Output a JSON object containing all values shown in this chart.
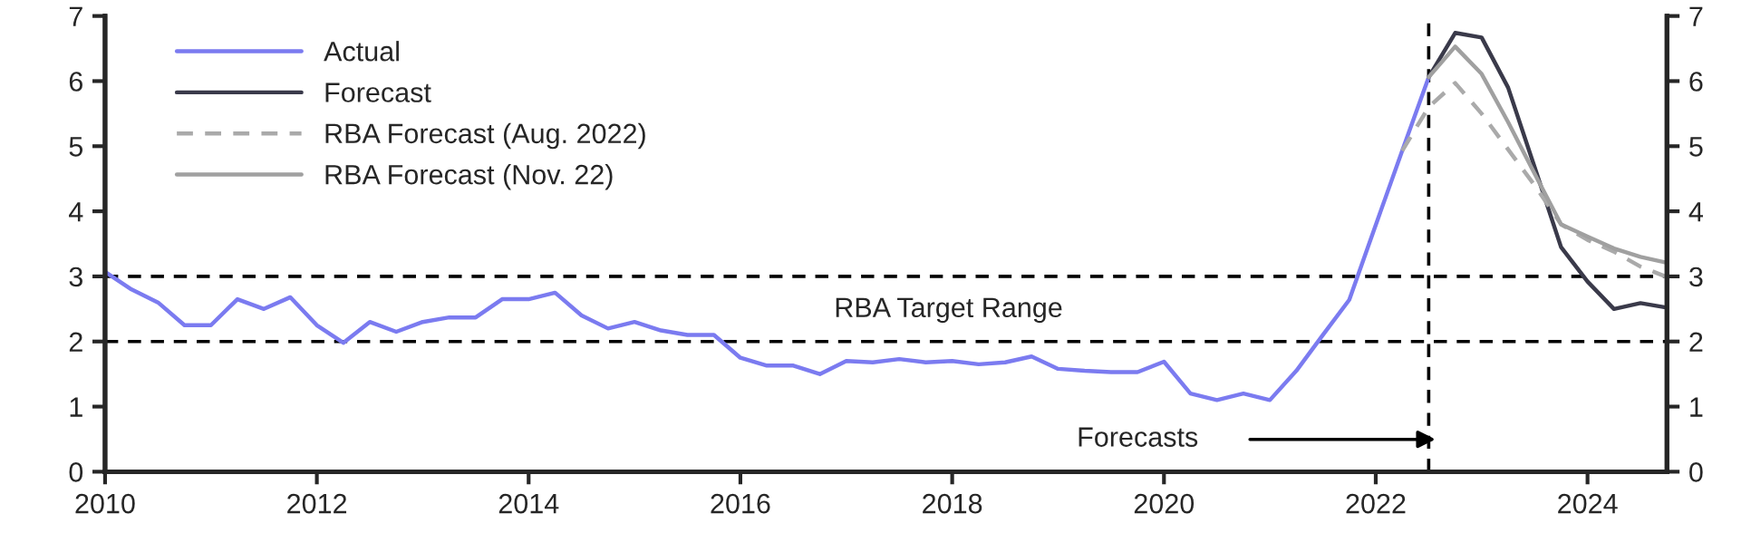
{
  "chart_data": {
    "type": "line",
    "xlim": [
      2010,
      2024.75
    ],
    "xticks": [
      2010,
      2012,
      2014,
      2016,
      2018,
      2020,
      2022,
      2024
    ],
    "ylim": [
      0,
      7
    ],
    "yticks": [
      0,
      1,
      2,
      3,
      4,
      5,
      6,
      7
    ],
    "y2lim": [
      0,
      7
    ],
    "y2ticks": [
      0,
      1,
      2,
      3,
      4,
      5,
      6,
      7
    ],
    "grid": false,
    "legend": "top left",
    "line_style": "solid",
    "marker": "none",
    "series": [
      {
        "name": "Actual",
        "color": "#7b7bf0",
        "x": [
          2010,
          2010.25,
          2010.5,
          2010.75,
          2011,
          2011.25,
          2011.5,
          2011.75,
          2012,
          2012.25,
          2012.5,
          2012.75,
          2013,
          2013.25,
          2013.5,
          2013.75,
          2014,
          2014.25,
          2014.5,
          2014.75,
          2015,
          2015.25,
          2015.5,
          2015.75,
          2016,
          2016.25,
          2016.5,
          2016.75,
          2017,
          2017.25,
          2017.5,
          2017.75,
          2018,
          2018.25,
          2018.5,
          2018.75,
          2019,
          2019.25,
          2019.5,
          2019.75,
          2020,
          2020.25,
          2020.5,
          2020.75,
          2021,
          2021.25,
          2021.5,
          2021.75,
          2022,
          2022.25,
          2022.5
        ],
        "values": [
          3.07,
          2.8,
          2.6,
          2.25,
          2.25,
          2.65,
          2.5,
          2.68,
          2.25,
          1.98,
          2.3,
          2.15,
          2.3,
          2.37,
          2.37,
          2.65,
          2.65,
          2.75,
          2.4,
          2.2,
          2.3,
          2.17,
          2.1,
          2.1,
          1.75,
          1.63,
          1.63,
          1.5,
          1.7,
          1.68,
          1.73,
          1.68,
          1.7,
          1.65,
          1.68,
          1.77,
          1.58,
          1.55,
          1.53,
          1.53,
          1.69,
          1.2,
          1.1,
          1.2,
          1.1,
          1.55,
          2.1,
          2.64,
          3.79,
          4.93,
          6.06
        ]
      },
      {
        "name": "Forecast",
        "color": "#3a3a4a",
        "x": [
          2022.5,
          2022.75,
          2023,
          2023.25,
          2023.5,
          2023.75,
          2024,
          2024.25,
          2024.5,
          2024.75
        ],
        "values": [
          6.06,
          6.74,
          6.67,
          5.9,
          4.68,
          3.45,
          2.92,
          2.5,
          2.59,
          2.52
        ]
      },
      {
        "name": "RBA Forecast (Aug. 2022)",
        "color": "#aaaaaa",
        "line_style": "dashed",
        "x": [
          2022.25,
          2022.5,
          2022.75,
          2023,
          2023.25,
          2023.5,
          2023.75,
          2024,
          2024.25,
          2024.5,
          2024.75
        ],
        "values": [
          4.93,
          5.6,
          5.97,
          5.5,
          4.95,
          4.4,
          3.8,
          3.56,
          3.38,
          3.15,
          2.99
        ]
      },
      {
        "name": "RBA Forecast (Nov. 22)",
        "color": "#a0a0a0",
        "x": [
          2022.5,
          2022.75,
          2023,
          2023.25,
          2023.5,
          2023.75,
          2024,
          2024.25,
          2024.5,
          2024.75
        ],
        "values": [
          6.06,
          6.53,
          6.11,
          5.37,
          4.58,
          3.8,
          3.61,
          3.43,
          3.3,
          3.21
        ]
      }
    ],
    "ref_lines": [
      {
        "axis": "y",
        "value": 3,
        "color": "#000000",
        "line_style": "dashed"
      },
      {
        "axis": "y",
        "value": 2,
        "color": "#000000",
        "line_style": "dashed"
      },
      {
        "axis": "x",
        "value": 2022.5,
        "color": "#000000",
        "line_style": "dashed"
      }
    ],
    "annotations": [
      "RBA Target Range",
      "Forecasts"
    ]
  }
}
